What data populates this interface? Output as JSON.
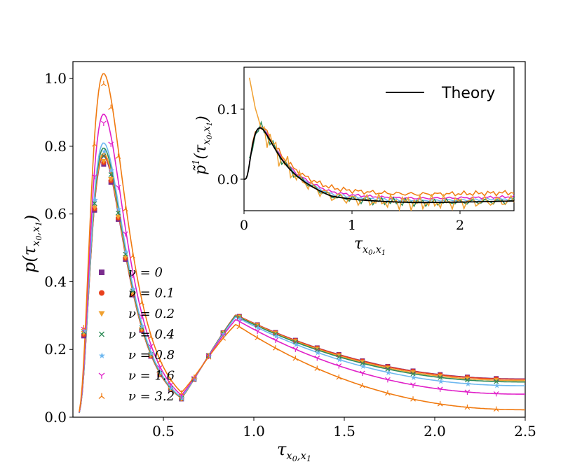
{
  "chart_data": [
    {
      "type": "line",
      "role": "main",
      "xlabel": "τ_{x0,x1}",
      "ylabel": "p(τ_{x0,x1})",
      "xlim": [
        0.0,
        2.5
      ],
      "ylim": [
        0.0,
        1.05
      ],
      "xticks": [
        "0.5",
        "1.0",
        "1.5",
        "2.0",
        "2.5"
      ],
      "yticks": [
        "0.0",
        "0.2",
        "0.4",
        "0.6",
        "0.8",
        "1.0"
      ],
      "legend_position": "lower-left",
      "series": [
        {
          "name": "ν = 0",
          "color": "#7b2d8e",
          "marker": "square",
          "peak": 0.77,
          "tail": 0.113
        },
        {
          "name": "ν = 0.1",
          "color": "#e8401c",
          "marker": "circle",
          "peak": 0.775,
          "tail": 0.112
        },
        {
          "name": "ν = 0.2",
          "color": "#f0a030",
          "marker": "triangle-down",
          "peak": 0.78,
          "tail": 0.108
        },
        {
          "name": "ν = 0.4",
          "color": "#2e8b57",
          "marker": "x",
          "peak": 0.795,
          "tail": 0.104
        },
        {
          "name": "ν = 0.8",
          "color": "#6fb8f0",
          "marker": "star",
          "peak": 0.81,
          "tail": 0.093
        },
        {
          "name": "ν = 1.6",
          "color": "#e020c8",
          "marker": "tri-down",
          "peak": 0.895,
          "tail": 0.068
        },
        {
          "name": "ν = 3.2",
          "color": "#f07a10",
          "marker": "tri-up",
          "peak": 1.015,
          "tail": 0.022
        }
      ]
    },
    {
      "type": "line",
      "role": "inset",
      "xlabel": "τ_{x0,x1}",
      "ylabel": "p̃¹(τ_{x0,x1})",
      "xlim": [
        0.0,
        2.5
      ],
      "ylim": [
        -0.045,
        0.16
      ],
      "xticks": [
        "0",
        "1",
        "2"
      ],
      "yticks": [
        "0.0",
        "0.1"
      ],
      "legend": [
        "Theory"
      ],
      "legend_position": "top-right",
      "theory_color": "#000000"
    }
  ]
}
